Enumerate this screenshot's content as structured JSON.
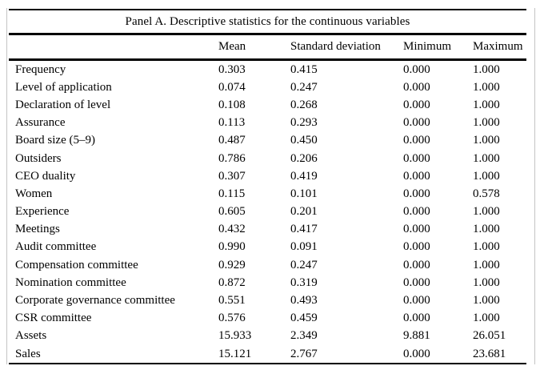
{
  "panel": {
    "title": "Panel A. Descriptive statistics for the continuous variables",
    "columns": {
      "variable": "",
      "mean": "Mean",
      "sd": "Standard deviation",
      "min": "Minimum",
      "max": "Maximum"
    },
    "rows": [
      {
        "variable": "Frequency",
        "mean": "0.303",
        "sd": "0.415",
        "min": "0.000",
        "max": "1.000"
      },
      {
        "variable": "Level of application",
        "mean": "0.074",
        "sd": "0.247",
        "min": "0.000",
        "max": "1.000"
      },
      {
        "variable": "Declaration of level",
        "mean": "0.108",
        "sd": "0.268",
        "min": "0.000",
        "max": "1.000"
      },
      {
        "variable": "Assurance",
        "mean": "0.113",
        "sd": "0.293",
        "min": "0.000",
        "max": "1.000"
      },
      {
        "variable": "Board size (5–9)",
        "mean": "0.487",
        "sd": "0.450",
        "min": "0.000",
        "max": "1.000"
      },
      {
        "variable": "Outsiders",
        "mean": "0.786",
        "sd": "0.206",
        "min": "0.000",
        "max": "1.000"
      },
      {
        "variable": "CEO duality",
        "mean": "0.307",
        "sd": "0.419",
        "min": "0.000",
        "max": "1.000"
      },
      {
        "variable": "Women",
        "mean": "0.115",
        "sd": "0.101",
        "min": "0.000",
        "max": "0.578"
      },
      {
        "variable": "Experience",
        "mean": "0.605",
        "sd": "0.201",
        "min": "0.000",
        "max": "1.000"
      },
      {
        "variable": "Meetings",
        "mean": "0.432",
        "sd": "0.417",
        "min": "0.000",
        "max": "1.000"
      },
      {
        "variable": "Audit committee",
        "mean": "0.990",
        "sd": "0.091",
        "min": "0.000",
        "max": "1.000"
      },
      {
        "variable": "Compensation committee",
        "mean": "0.929",
        "sd": "0.247",
        "min": "0.000",
        "max": "1.000"
      },
      {
        "variable": "Nomination committee",
        "mean": "0.872",
        "sd": "0.319",
        "min": "0.000",
        "max": "1.000"
      },
      {
        "variable": "Corporate governance committee",
        "mean": "0.551",
        "sd": "0.493",
        "min": "0.000",
        "max": "1.000"
      },
      {
        "variable": "CSR committee",
        "mean": "0.576",
        "sd": "0.459",
        "min": "0.000",
        "max": "1.000"
      },
      {
        "variable": "Assets",
        "mean": "15.933",
        "sd": "2.349",
        "min": "9.881",
        "max": "26.051"
      },
      {
        "variable": "Sales",
        "mean": "15.121",
        "sd": "2.767",
        "min": "0.000",
        "max": "23.681"
      }
    ],
    "colors": {
      "rule": "#000000",
      "frame_border": "#c4c4c4",
      "background": "#ffffff",
      "text": "#000000"
    }
  }
}
